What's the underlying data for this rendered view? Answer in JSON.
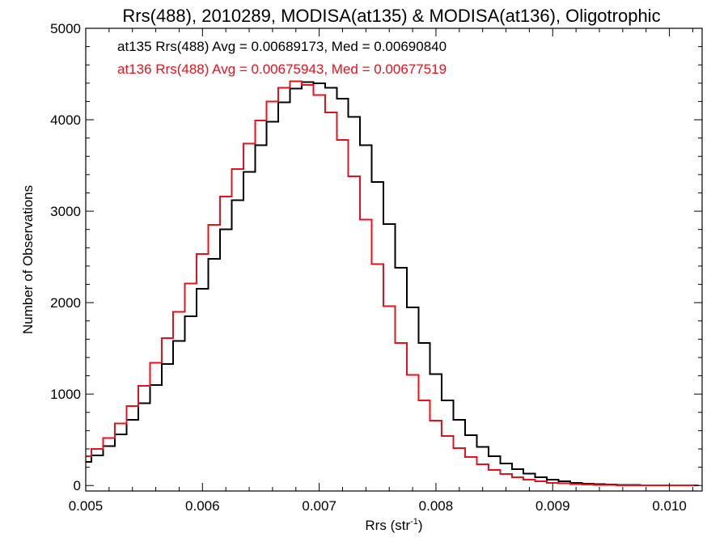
{
  "chart_data": {
    "type": "line",
    "step": true,
    "title": "Rrs(488), 2010289, MODISA(at135) & MODISA(at136), Oligotrophic",
    "xlabel": "Rrs (str",
    "xlabel_sup": "-1",
    "xlabel_end": ")",
    "ylabel": "Number of Observations",
    "xlim": [
      0.005,
      0.01028
    ],
    "ylim": [
      -60,
      5000
    ],
    "xticks": [
      0.005,
      0.006,
      0.007,
      0.008,
      0.009,
      0.01
    ],
    "xtick_labels": [
      "0.005",
      "0.006",
      "0.007",
      "0.008",
      "0.009",
      "0.010"
    ],
    "yticks": [
      0,
      1000,
      2000,
      3000,
      4000,
      5000
    ],
    "ytick_labels": [
      "0",
      "1000",
      "2000",
      "3000",
      "4000",
      "5000"
    ],
    "grid": false,
    "legend_position": "top-left",
    "series": [
      {
        "label": "at135 Rrs(488) Avg = 0.00689173, Med = 0.00690840",
        "color": "#000000",
        "x": [
          0.005,
          0.0051,
          0.0052,
          0.0053,
          0.0054,
          0.0055,
          0.0056,
          0.0057,
          0.0058,
          0.0059,
          0.006,
          0.0061,
          0.0062,
          0.0063,
          0.0064,
          0.0065,
          0.0066,
          0.0067,
          0.0068,
          0.0069,
          0.007,
          0.0071,
          0.0072,
          0.0073,
          0.0074,
          0.0075,
          0.0076,
          0.0077,
          0.0078,
          0.0079,
          0.008,
          0.0081,
          0.0082,
          0.0083,
          0.0084,
          0.0085,
          0.0086,
          0.0087,
          0.0088,
          0.0089,
          0.009,
          0.0091,
          0.0092,
          0.0093,
          0.0094,
          0.0095,
          0.0096,
          0.0097,
          0.0098,
          0.0099,
          0.01,
          0.0101,
          0.0102
        ],
        "y": [
          260,
          330,
          430,
          560,
          720,
          900,
          1100,
          1330,
          1580,
          1850,
          2150,
          2480,
          2800,
          3120,
          3430,
          3720,
          3980,
          4190,
          4340,
          4410,
          4400,
          4350,
          4230,
          4030,
          3720,
          3320,
          2860,
          2380,
          1950,
          1560,
          1220,
          930,
          720,
          550,
          420,
          320,
          240,
          180,
          130,
          90,
          65,
          45,
          30,
          20,
          14,
          10,
          7,
          5,
          4,
          3,
          2,
          2,
          1
        ]
      },
      {
        "label": "at136 Rrs(488) Avg = 0.00675943, Med = 0.00677519",
        "color": "#e8101a",
        "x": [
          0.005,
          0.0051,
          0.0052,
          0.0053,
          0.0054,
          0.0055,
          0.0056,
          0.0057,
          0.0058,
          0.0059,
          0.006,
          0.0061,
          0.0062,
          0.0063,
          0.0064,
          0.0065,
          0.0066,
          0.0067,
          0.0068,
          0.0069,
          0.007,
          0.0071,
          0.0072,
          0.0073,
          0.0074,
          0.0075,
          0.0076,
          0.0077,
          0.0078,
          0.0079,
          0.008,
          0.0081,
          0.0082,
          0.0083,
          0.0084,
          0.0085,
          0.0086,
          0.0087,
          0.0088,
          0.0089,
          0.009,
          0.0091,
          0.0092,
          0.0093,
          0.0094,
          0.0095,
          0.0096,
          0.0097,
          0.0098,
          0.0099,
          0.01,
          0.0101,
          0.0102
        ],
        "y": [
          320,
          400,
          520,
          680,
          870,
          1090,
          1340,
          1610,
          1900,
          2210,
          2530,
          2850,
          3160,
          3460,
          3740,
          3990,
          4200,
          4350,
          4420,
          4380,
          4270,
          4080,
          3780,
          3380,
          2910,
          2420,
          1960,
          1560,
          1210,
          930,
          710,
          540,
          410,
          310,
          230,
          170,
          125,
          90,
          65,
          45,
          30,
          22,
          15,
          11,
          8,
          6,
          4,
          3,
          2,
          2,
          1,
          1,
          1
        ]
      }
    ]
  }
}
